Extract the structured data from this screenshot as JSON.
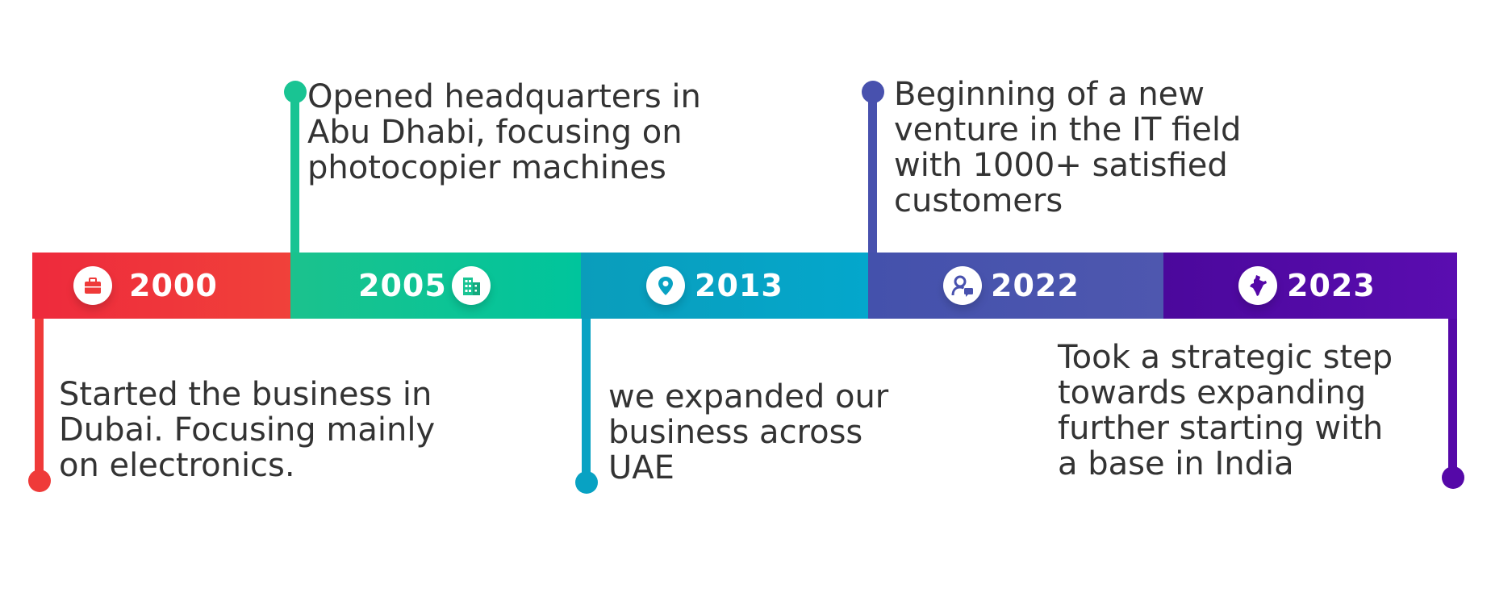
{
  "events": [
    {
      "year": "2000",
      "icon": "briefcase-icon",
      "color": "#ef3a39",
      "description": [
        "Started the business in",
        "Dubai. Focusing mainly",
        "on electronics."
      ]
    },
    {
      "year": "2005",
      "icon": "building-icon",
      "color": "#19c493",
      "description": [
        "Opened headquarters in",
        "Abu Dhabi, focusing on",
        "photocopier machines"
      ]
    },
    {
      "year": "2013",
      "icon": "location-pin-icon",
      "color": "#08a2c3",
      "description": [
        "we expanded our",
        "business across",
        "UAE"
      ]
    },
    {
      "year": "2022",
      "icon": "customer-support-icon",
      "color": "#4851ae",
      "description": [
        "Beginning of a new",
        "venture in the IT field",
        "with 1000+ satisfied",
        "customers"
      ]
    },
    {
      "year": "2023",
      "icon": "india-map-icon",
      "color": "#5508a8",
      "description": [
        "Took a strategic step",
        "towards expanding",
        "further starting with",
        "a base in India"
      ]
    }
  ]
}
